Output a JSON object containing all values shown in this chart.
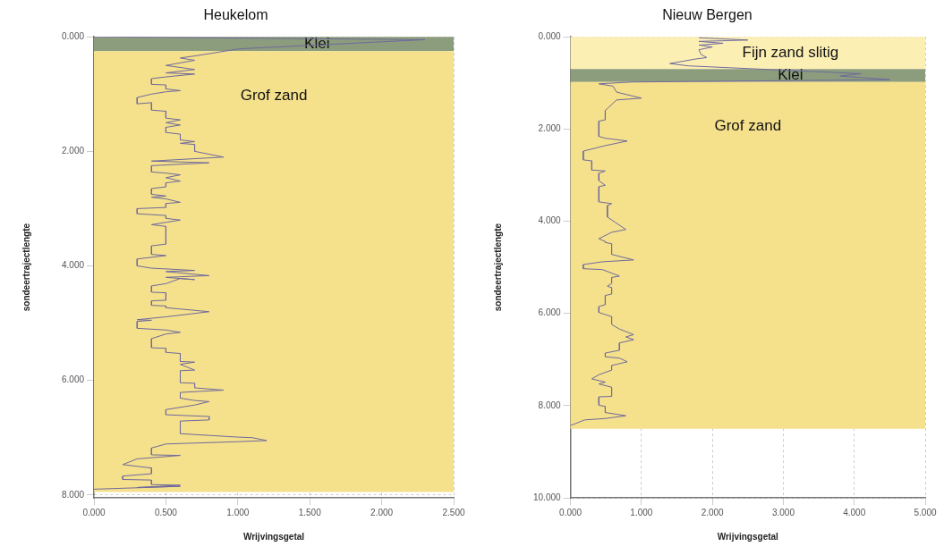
{
  "chart_data": [
    {
      "type": "line",
      "title": "Heukelom",
      "xlabel": "Wrijvingsgetal",
      "ylabel": "sondeertrajectlengte",
      "grid": true,
      "marker": "none",
      "line_style": "solid",
      "xlim": [
        0,
        2.5
      ],
      "xticks": [
        {
          "value": 0,
          "label": "0.000"
        },
        {
          "value": 0.5,
          "label": "0.500"
        },
        {
          "value": 1,
          "label": "1.000"
        },
        {
          "value": 1.5,
          "label": "1.500"
        },
        {
          "value": 2,
          "label": "2.000"
        },
        {
          "value": 2.5,
          "label": "2.500"
        }
      ],
      "ylim": [
        8.05,
        0
      ],
      "yticks": [
        {
          "value": 0,
          "label": "0.000"
        },
        {
          "value": 2,
          "label": "2.000"
        },
        {
          "value": 4,
          "label": "4.000"
        },
        {
          "value": 6,
          "label": "6.000"
        },
        {
          "value": 8,
          "label": "8.000"
        }
      ],
      "bands": [
        {
          "axis": "y",
          "from": 0,
          "to": 0.25,
          "label": "Klei",
          "color": "#8c9d7d"
        },
        {
          "axis": "y",
          "from": 0.25,
          "to": 7.95,
          "label": "Grof zand",
          "color": "#f5e08c"
        }
      ],
      "series": [
        {
          "color": "#6f6a9c",
          "x": [
            0,
            2.3,
            1.01,
            0.91,
            0.81,
            0.71,
            0.6,
            0.7,
            0.5,
            0.7,
            0.5,
            0.7,
            0.5,
            0.4,
            0.4,
            0.5,
            0.5,
            0.6,
            0.5,
            0.4,
            0.3,
            0.3,
            0.4,
            0.4,
            0.5,
            0.5,
            0.6,
            0.5,
            0.6,
            0.5,
            0.5,
            0.6,
            0.6,
            0.7,
            0.6,
            0.7,
            0.7,
            0.9,
            0.4,
            0.8,
            0.4,
            0.4,
            0.5,
            0.6,
            0.5,
            0.6,
            0.5,
            0.5,
            0.4,
            0.4,
            0.5,
            0.4,
            0.5,
            0.6,
            0.5,
            0.5,
            0.3,
            0.3,
            0.5,
            0.5,
            0.6,
            0.5,
            0.4,
            0.5,
            0.5,
            0.4,
            0.4,
            0.5,
            0.3,
            0.3,
            0.4,
            0.7,
            0.5,
            0.8,
            0.5,
            0.7,
            0.6,
            0.5,
            0.4,
            0.4,
            0.5,
            0.5,
            0.4,
            0.4,
            0.5,
            0.5,
            0.8,
            0.5,
            0.3,
            0.4,
            0.3,
            0.3,
            0.5,
            0.6,
            0.5,
            0.4,
            0.4,
            0.5,
            0.5,
            0.6,
            0.6,
            0.7,
            0.6,
            0.7,
            0.6,
            0.6,
            0.7,
            0.7,
            0.9,
            0.6,
            0.6,
            0.7,
            0.8,
            0.7,
            0.5,
            0.5,
            0.8,
            0.8,
            0.6,
            0.6,
            1.0,
            1.1,
            1.2,
            1.0,
            0.5,
            0.4,
            0.4,
            0.6,
            0.3,
            0.2,
            0.3,
            0.4,
            0.4,
            0.2,
            0.2,
            0.4,
            0.4,
            0.6,
            0.3,
            0.6,
            0
          ],
          "values": [
            0,
            0.05,
            0.21,
            0.25,
            0.29,
            0.33,
            0.37,
            0.41,
            0.5,
            0.57,
            0.63,
            0.65,
            0.7,
            0.73,
            0.83,
            0.84,
            0.91,
            0.94,
            0.96,
            1.0,
            1.06,
            1.17,
            1.15,
            1.28,
            1.3,
            1.42,
            1.45,
            1.5,
            1.54,
            1.58,
            1.67,
            1.7,
            1.8,
            1.83,
            1.86,
            1.88,
            2.0,
            2.1,
            2.17,
            2.2,
            2.25,
            2.36,
            2.38,
            2.41,
            2.46,
            2.52,
            2.55,
            2.62,
            2.65,
            2.75,
            2.78,
            2.8,
            2.83,
            2.89,
            2.91,
            2.98,
            3.0,
            3.09,
            3.12,
            3.17,
            3.2,
            3.24,
            3.28,
            3.31,
            3.62,
            3.65,
            3.8,
            3.82,
            3.88,
            4.0,
            4.04,
            4.08,
            4.1,
            4.17,
            4.2,
            4.24,
            4.22,
            4.31,
            4.35,
            4.46,
            4.47,
            4.6,
            4.61,
            4.69,
            4.7,
            4.73,
            4.8,
            4.89,
            4.94,
            4.95,
            4.97,
            5.09,
            5.12,
            5.16,
            5.19,
            5.27,
            5.43,
            5.44,
            5.51,
            5.53,
            5.67,
            5.68,
            5.72,
            5.82,
            5.83,
            6.04,
            6.05,
            6.13,
            6.17,
            6.21,
            6.31,
            6.35,
            6.37,
            6.43,
            6.51,
            6.6,
            6.63,
            6.69,
            6.71,
            6.93,
            6.99,
            7.0,
            7.05,
            7.07,
            7.11,
            7.18,
            7.3,
            7.31,
            7.37,
            7.47,
            7.5,
            7.53,
            7.63,
            7.67,
            7.73,
            7.74,
            7.82,
            7.83,
            7.87,
            7.85,
            7.9
          ]
        }
      ]
    },
    {
      "type": "line",
      "title": "Nieuw Bergen",
      "xlabel": "Wrijvingsgetal",
      "ylabel": "sondeertrajectlengte",
      "grid": true,
      "marker": "none",
      "line_style": "solid",
      "xlim": [
        0,
        5
      ],
      "xticks": [
        {
          "value": 0,
          "label": "0.000"
        },
        {
          "value": 1,
          "label": "1.000"
        },
        {
          "value": 2,
          "label": "2.000"
        },
        {
          "value": 3,
          "label": "3.000"
        },
        {
          "value": 4,
          "label": "4.000"
        },
        {
          "value": 5,
          "label": "5.000"
        }
      ],
      "ylim": [
        10,
        0
      ],
      "yticks": [
        {
          "value": 0,
          "label": "0.000"
        },
        {
          "value": 2,
          "label": "2.000"
        },
        {
          "value": 4,
          "label": "4.000"
        },
        {
          "value": 6,
          "label": "6.000"
        },
        {
          "value": 8,
          "label": "8.000"
        },
        {
          "value": 10,
          "label": "10.000"
        }
      ],
      "bands": [
        {
          "axis": "y",
          "from": 0,
          "to": 0.7,
          "label": "Fijn zand slitig",
          "color": "#fcefb4"
        },
        {
          "axis": "y",
          "from": 0.7,
          "to": 0.98,
          "label": "Klei",
          "color": "#8c9d7d"
        },
        {
          "axis": "y",
          "from": 0.98,
          "to": 8.5,
          "label": "Grof zand",
          "color": "#f5e08c"
        }
      ],
      "series": [
        {
          "color": "#6f6a9c",
          "x": [
            1.81,
            2.5,
            1.81,
            2.15,
            1.81,
            2.0,
            1.81,
            1.84,
            1.92,
            1.77,
            1.4,
            1.66,
            4.1,
            3.8,
            4.5,
            0.87,
            0.4,
            0.6,
            0.65,
            1.0,
            0.65,
            0.6,
            0.49,
            0.49,
            0.4,
            0.4,
            0.49,
            0.8,
            0.49,
            0.18,
            0.18,
            0.3,
            0.3,
            0.49,
            0.4,
            0.4,
            0.49,
            0.4,
            0.4,
            0.58,
            0.52,
            0.52,
            0.78,
            0.58,
            0.4,
            0.49,
            0.49,
            0.58,
            0.58,
            0.89,
            0.45,
            0.18,
            0.18,
            0.45,
            0.69,
            0.58,
            0.58,
            0.52,
            0.58,
            0.58,
            0.49,
            0.49,
            0.4,
            0.4,
            0.58,
            0.58,
            0.69,
            0.89,
            0.78,
            0.89,
            0.69,
            0.69,
            0.49,
            0.49,
            0.69,
            0.8,
            0.58,
            0.58,
            0.4,
            0.3,
            0.49,
            0.4,
            0.58,
            0.58,
            0.4,
            0.4,
            0.49,
            0.49,
            0.78,
            0.49,
            0.2,
            0.07,
            0
          ],
          "values": [
            0.02,
            0.07,
            0.1,
            0.14,
            0.18,
            0.22,
            0.28,
            0.38,
            0.45,
            0.48,
            0.58,
            0.63,
            0.8,
            0.85,
            0.93,
            0.98,
            1.02,
            1.07,
            1.2,
            1.33,
            1.37,
            1.44,
            1.6,
            1.8,
            1.83,
            2.16,
            2.2,
            2.26,
            2.36,
            2.48,
            2.67,
            2.69,
            2.89,
            2.91,
            2.96,
            3.12,
            3.22,
            3.25,
            3.58,
            3.62,
            3.66,
            3.91,
            4.18,
            4.24,
            4.38,
            4.44,
            4.46,
            4.49,
            4.72,
            4.84,
            4.88,
            4.94,
            5.03,
            5.05,
            5.19,
            5.22,
            5.35,
            5.41,
            5.44,
            5.58,
            5.61,
            5.81,
            5.85,
            5.98,
            6.07,
            6.24,
            6.34,
            6.46,
            6.51,
            6.57,
            6.64,
            6.8,
            6.86,
            6.94,
            6.97,
            7.05,
            7.13,
            7.23,
            7.33,
            7.42,
            7.49,
            7.53,
            7.6,
            7.8,
            7.81,
            7.99,
            8.02,
            8.15,
            8.22,
            8.28,
            8.31,
            8.39,
            8.43
          ]
        }
      ]
    }
  ]
}
